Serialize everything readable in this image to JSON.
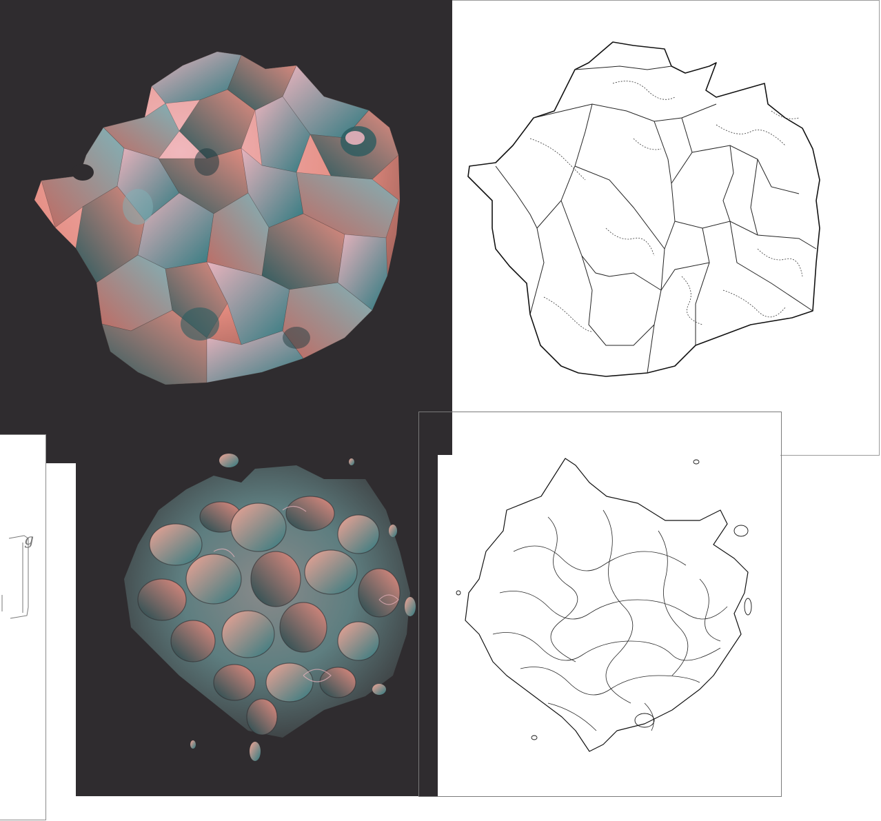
{
  "canvas": {
    "background": "#ffffff",
    "render_background": "#2f2c2f",
    "palette": {
      "salmon": "#e58c80",
      "teal": "#2f7a80",
      "pink": "#e9b3bd",
      "dark": "#1f3b40"
    }
  },
  "panels": [
    {
      "id": "top-left-render",
      "kind": "shaded 3D render"
    },
    {
      "id": "top-right-edges",
      "kind": "edge line drawing"
    },
    {
      "id": "bottom-center-render",
      "kind": "shaded 3D render"
    },
    {
      "id": "bottom-right-edges",
      "kind": "edge line drawing"
    }
  ],
  "handwriting": {
    "superscript": "g"
  }
}
